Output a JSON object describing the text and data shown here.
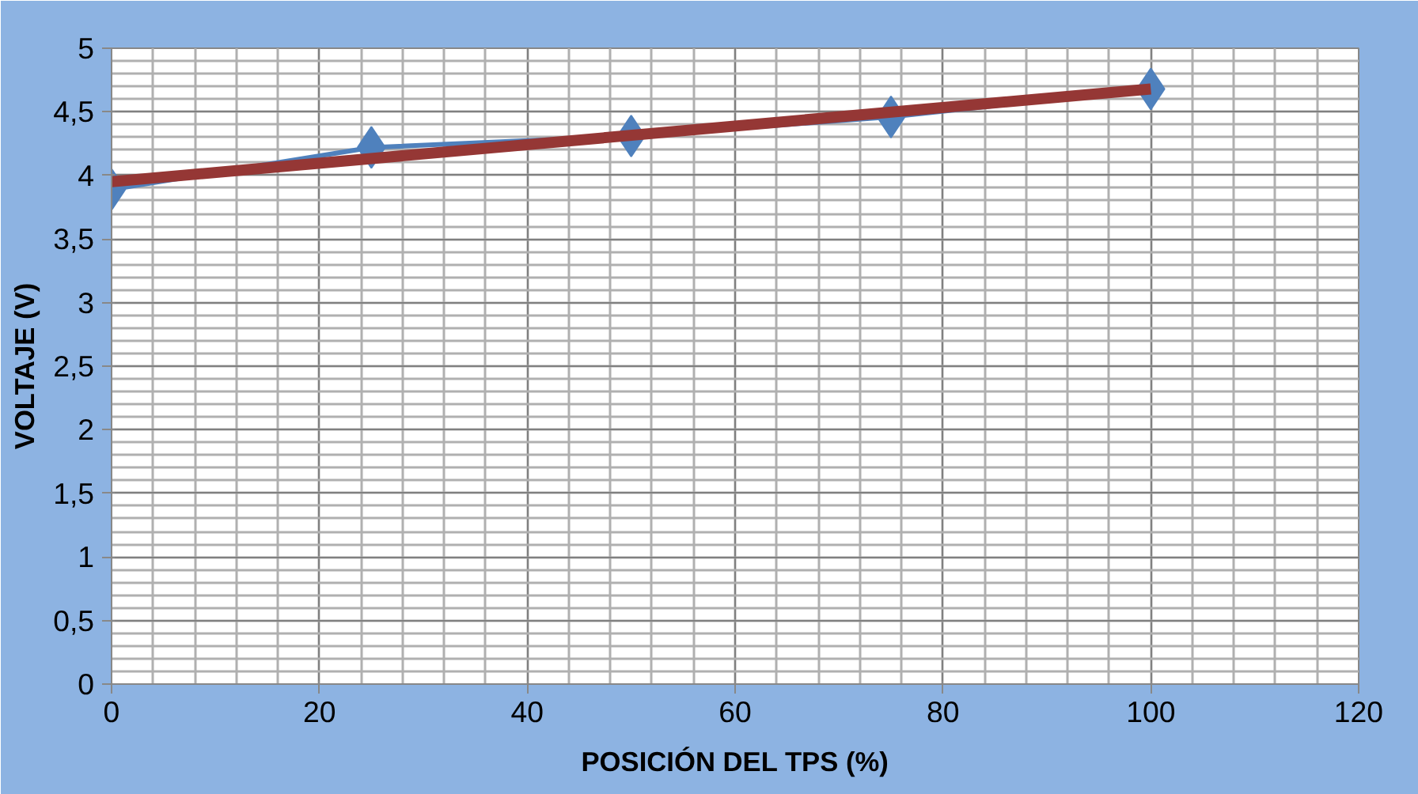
{
  "chart_data": {
    "type": "line",
    "xlabel": "POSICIÓN DEL TPS (%)",
    "ylabel": "VOLTAJE (V)",
    "x": [
      0,
      25,
      50,
      75,
      100
    ],
    "series": [
      {
        "color": "#4f81bd",
        "values": [
          3.89,
          4.22,
          4.31,
          4.46,
          4.68
        ],
        "marker": "diamond"
      },
      {
        "type": "line",
        "color": "#953735",
        "x": [
          0,
          100
        ],
        "values": [
          3.95,
          4.68
        ],
        "marker": "none"
      }
    ],
    "xlim": [
      0,
      120
    ],
    "xticks": [
      0,
      20,
      40,
      60,
      80,
      100,
      120
    ],
    "ylim": [
      0,
      5
    ],
    "yticks": [
      {
        "value": 0,
        "label": "0"
      },
      {
        "value": 0.5,
        "label": "0,5"
      },
      {
        "value": 1,
        "label": "1"
      },
      {
        "value": 1.5,
        "label": "1,5"
      },
      {
        "value": 2,
        "label": "2"
      },
      {
        "value": 2.5,
        "label": "2,5"
      },
      {
        "value": 3,
        "label": "3"
      },
      {
        "value": 3.5,
        "label": "3,5"
      },
      {
        "value": 4,
        "label": "4"
      },
      {
        "value": 4.5,
        "label": "4,5"
      },
      {
        "value": 5,
        "label": "5"
      }
    ],
    "grid": true
  }
}
